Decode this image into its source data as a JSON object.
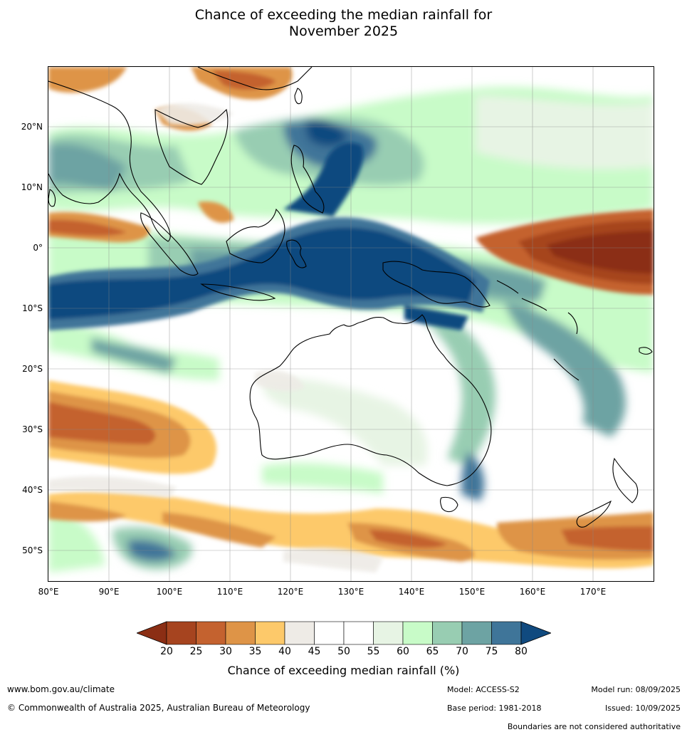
{
  "title_line1": "Chance of exceeding the median rainfall for",
  "title_line2": "November 2025",
  "lat_ticks": [
    "20°N",
    "10°N",
    "0°",
    "10°S",
    "20°S",
    "30°S",
    "40°S",
    "50°S"
  ],
  "lon_ticks": [
    "80°E",
    "90°E",
    "100°E",
    "110°E",
    "120°E",
    "130°E",
    "140°E",
    "150°E",
    "160°E",
    "170°E"
  ],
  "colorbar": {
    "ticks": [
      "20",
      "25",
      "30",
      "35",
      "40",
      "45",
      "50",
      "55",
      "60",
      "65",
      "70",
      "75",
      "80"
    ],
    "colors": [
      "#8b2e14",
      "#a6441f",
      "#c4622f",
      "#de9447",
      "#fdc96a",
      "#eeebe6",
      "#ffffff",
      "#ffffff",
      "#e7f4e4",
      "#c8fbc8",
      "#98cdb2",
      "#6da3a3",
      "#3f7599",
      "#104a7f"
    ],
    "title": "Chance of exceeding median rainfall (%)"
  },
  "footer": {
    "url": "www.bom.gov.au/climate",
    "copyright": "© Commonwealth of Australia 2025, Australian Bureau of Meteorology",
    "model": "Model: ACCESS-S2",
    "base_period": "Base period: 1981-2018",
    "model_run": "Model run: 08/09/2025",
    "issued": "Issued: 10/09/2025",
    "disclaimer": "Boundaries are not considered authoritative"
  }
}
